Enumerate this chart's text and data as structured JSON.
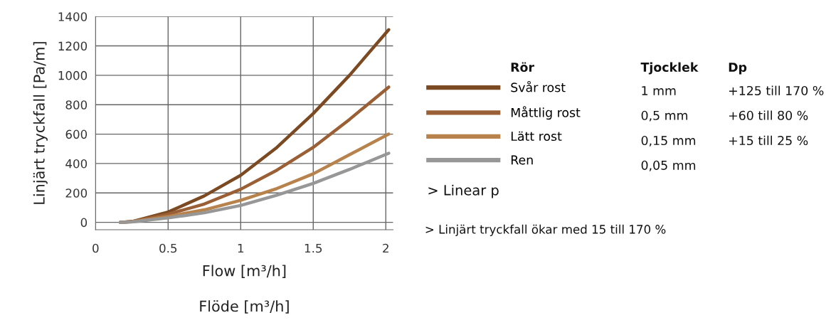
{
  "chart_data": {
    "type": "line",
    "xlabel": "Flow [m³/h]\n\nFlöde [m³/h]",
    "ylabel": "Linjärt tryckfall [Pa/m]",
    "x": [
      0.17,
      0.25,
      0.5,
      0.75,
      1,
      1.25,
      1.5,
      1.75,
      2.02
    ],
    "series": [
      {
        "name": "Svår rost",
        "color": "#7b4a22",
        "values": [
          0,
          5,
          70,
          180,
          320,
          510,
          740,
          1000,
          1310
        ]
      },
      {
        "name": "Måttlig rost",
        "color": "#9a5f35",
        "values": [
          0,
          5,
          55,
          125,
          225,
          355,
          510,
          700,
          920
        ]
      },
      {
        "name": "Lätt rost",
        "color": "#b8824c",
        "values": [
          0,
          4,
          40,
          85,
          150,
          230,
          330,
          460,
          600
        ]
      },
      {
        "name": "Ren",
        "color": "#979797",
        "values": [
          0,
          3,
          30,
          65,
          115,
          185,
          265,
          360,
          470
        ]
      }
    ],
    "xlim": [
      0,
      2.05
    ],
    "xticks": [
      0,
      0.5,
      1,
      1.5,
      2
    ],
    "ylim": [
      -50,
      1400
    ],
    "yticks": [
      0,
      200,
      400,
      600,
      800,
      1000,
      1200,
      1400
    ],
    "grid": true,
    "legend": "right",
    "marker": "none",
    "line_style": "solid",
    "annotations": [
      "Rör",
      "Tjocklek",
      "Dp",
      "1 mm",
      "+125 till 170 %",
      "0,5 mm",
      "+60 till 80 %",
      "0,15 mm",
      "+15 till 25 %",
      "0,05 mm",
      "> Linear p",
      "> Linjärt tryckfall ökar med 15 till 170 %"
    ]
  }
}
